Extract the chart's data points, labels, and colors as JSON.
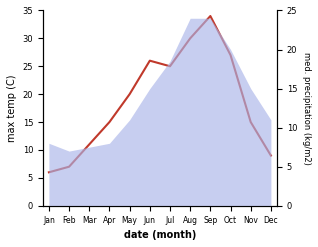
{
  "months": [
    "Jan",
    "Feb",
    "Mar",
    "Apr",
    "May",
    "Jun",
    "Jul",
    "Aug",
    "Sep",
    "Oct",
    "Nov",
    "Dec"
  ],
  "temp_data": [
    6,
    7,
    11,
    15,
    20,
    26,
    25,
    30,
    34,
    27,
    15,
    9
  ],
  "precip_data": [
    8,
    7,
    7.5,
    8,
    11,
    15,
    18.5,
    24,
    24,
    20,
    15,
    11
  ],
  "ylabel_left": "max temp (C)",
  "ylabel_right": "med. precipitation (kg/m2)",
  "xlabel": "date (month)",
  "ylim_left": [
    0,
    35
  ],
  "ylim_right": [
    0,
    25
  ],
  "line_color": "#c0392b",
  "fill_color": "#aab4e8",
  "fill_alpha": 0.65,
  "background_color": "#ffffff"
}
